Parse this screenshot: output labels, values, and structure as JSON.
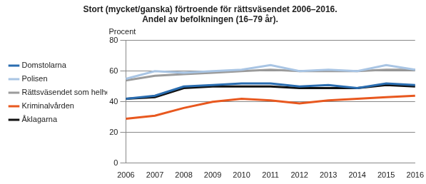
{
  "chart_data": {
    "type": "line",
    "title": "Stort (mycket/ganska) förtroende för rättsväsendet 2006–2016.",
    "subtitle": "Andel av befolkningen (16–79 år).",
    "ylabel": "Procent",
    "categories": [
      "2006",
      "2007",
      "2008",
      "2009",
      "2010",
      "2011",
      "2012",
      "2013",
      "2014",
      "2015",
      "2016"
    ],
    "series": [
      {
        "name": "Domstolarna",
        "color": "#2a6db0",
        "values": [
          42,
          44,
          50,
          51,
          52,
          52,
          50,
          51,
          49,
          52,
          51
        ]
      },
      {
        "name": "Polisen",
        "color": "#a9c5e4",
        "values": [
          55,
          60,
          59,
          60,
          61,
          64,
          60,
          61,
          60,
          64,
          61
        ]
      },
      {
        "name": "Rättsväsendet som helhet",
        "color": "#9b9b9b",
        "values": [
          54,
          57,
          58,
          59,
          60,
          61,
          60,
          60,
          60,
          61,
          61
        ]
      },
      {
        "name": "Kriminalvården",
        "color": "#e8581f",
        "values": [
          29,
          31,
          36,
          40,
          42,
          41,
          39,
          41,
          42,
          43,
          44
        ]
      },
      {
        "name": "Åklagarna",
        "color": "#111111",
        "values": [
          42,
          43,
          49,
          50,
          50,
          50,
          49,
          49,
          49,
          51,
          50
        ]
      }
    ],
    "ylim": [
      0,
      80
    ],
    "yticks": [
      0,
      20,
      40,
      60,
      80
    ],
    "grid": true,
    "legend": "left"
  }
}
